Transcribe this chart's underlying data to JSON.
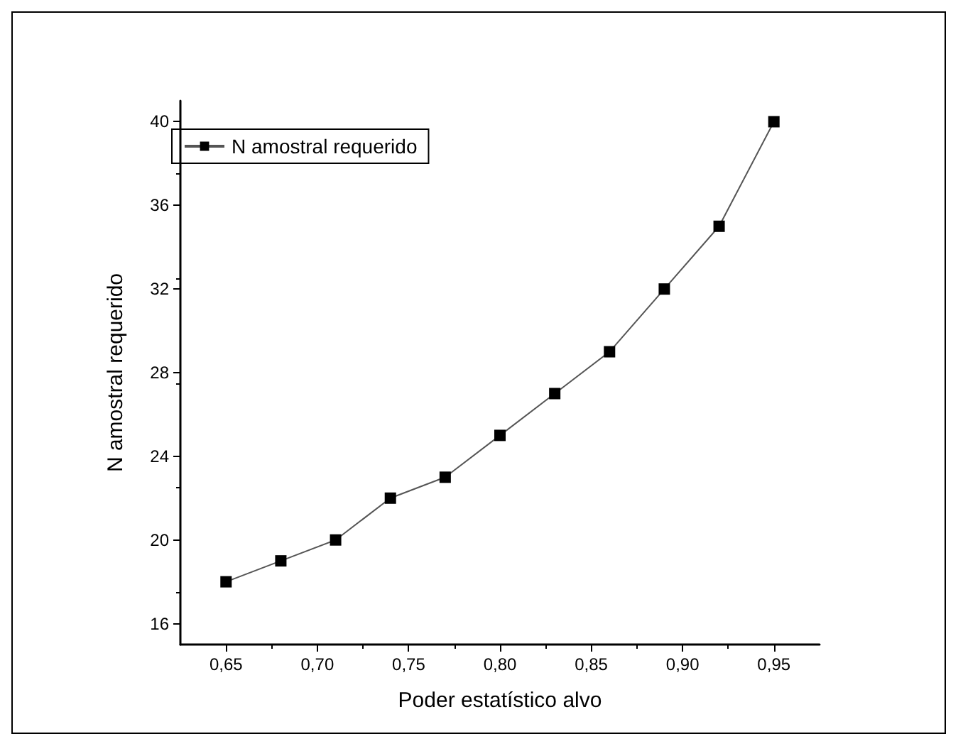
{
  "chart_data": {
    "type": "line",
    "xlabel": "Poder estatístico alvo",
    "ylabel": "N amostral requerido",
    "x": [
      0.65,
      0.68,
      0.71,
      0.74,
      0.77,
      0.8,
      0.83,
      0.86,
      0.89,
      0.92,
      0.95
    ],
    "series": [
      {
        "name": "N amostral requerido",
        "color": "#000000",
        "values": [
          18,
          19,
          20,
          22,
          23,
          25,
          27,
          29,
          32,
          35,
          40
        ]
      }
    ],
    "xlim": [
      0.625,
      0.975
    ],
    "xticks": [
      {
        "value": 0.65,
        "label": "0,65"
      },
      {
        "value": 0.7,
        "label": "0,70"
      },
      {
        "value": 0.75,
        "label": "0,75"
      },
      {
        "value": 0.8,
        "label": "0,80"
      },
      {
        "value": 0.85,
        "label": "0,85"
      },
      {
        "value": 0.9,
        "label": "0,90"
      },
      {
        "value": 0.95,
        "label": "0,95"
      }
    ],
    "ylim": [
      15,
      41
    ],
    "yticks": [
      16,
      20,
      24,
      28,
      32,
      36,
      40
    ],
    "grid": false,
    "legend": "top left",
    "marker": "square",
    "line_style": "solid"
  }
}
